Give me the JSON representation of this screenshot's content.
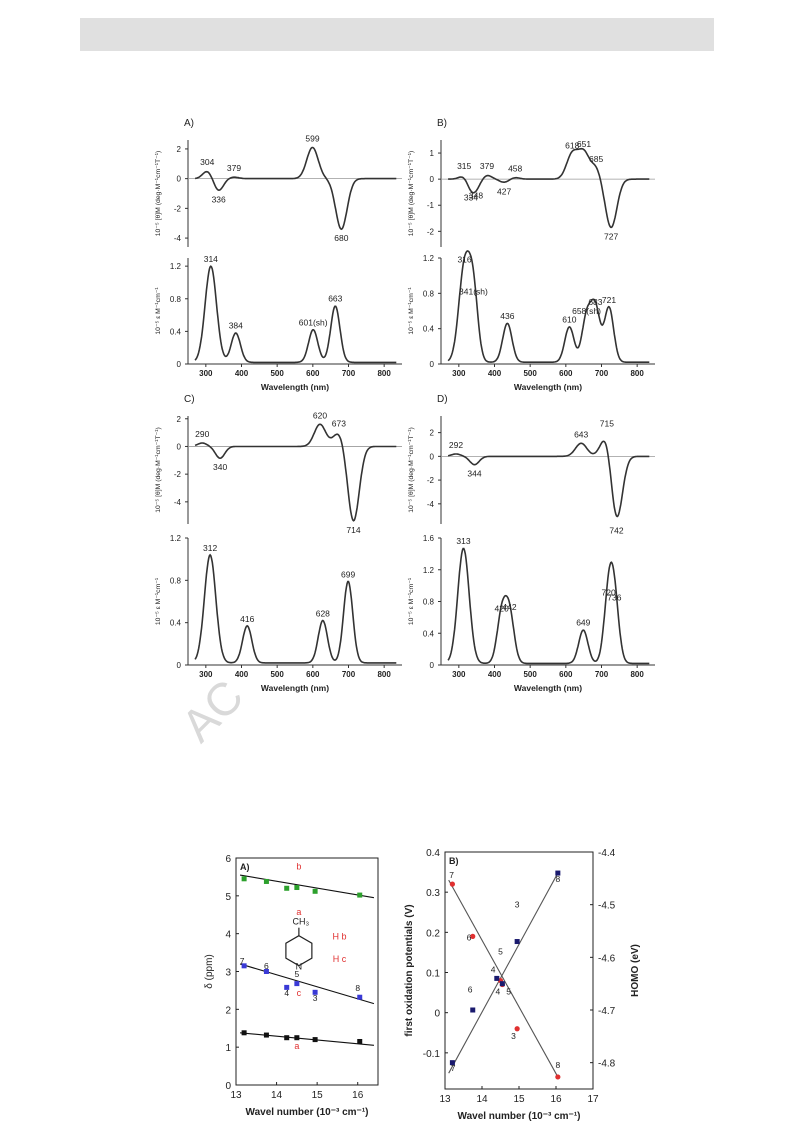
{
  "page": {
    "watermark": "AC"
  },
  "chart_data": [
    {
      "type": "line",
      "panel_label": "A)",
      "ylabel": "10⁻⁵ [θ]M (deg·M⁻¹cm⁻¹T⁻¹)",
      "xlim": [
        250,
        850
      ],
      "ylim": [
        -4.6,
        2.6
      ],
      "yticks": [
        2,
        0,
        -2,
        -4
      ],
      "peaks": [
        [
          304,
          0.5
        ],
        [
          336,
          -0.8
        ],
        [
          379,
          0.1
        ],
        [
          599,
          2.1
        ],
        [
          680,
          -3.4
        ]
      ],
      "annotations": [
        {
          "x": 304,
          "y": 0.5,
          "text": "304"
        },
        {
          "x": 336,
          "y": -0.8,
          "text": "336"
        },
        {
          "x": 379,
          "y": 0.1,
          "text": "379"
        },
        {
          "x": 599,
          "y": 2.1,
          "text": "599"
        },
        {
          "x": 680,
          "y": -3.4,
          "text": "680"
        }
      ]
    },
    {
      "type": "line",
      "ylabel": "10⁻⁵ ε M⁻¹cm⁻¹",
      "xlabel": "Wavelength (nm)",
      "xlim": [
        250,
        850
      ],
      "ylim": [
        0,
        1.3
      ],
      "yticks": [
        0,
        0.4,
        0.8,
        1.2
      ],
      "xticks": [
        300,
        400,
        500,
        600,
        700,
        800
      ],
      "baseline": 0.02,
      "peaks": [
        [
          314,
          1.18
        ],
        [
          384,
          0.36
        ],
        [
          601,
          0.4
        ],
        [
          663,
          0.69
        ]
      ],
      "annotations": [
        {
          "x": 314,
          "y": 1.18,
          "text": "314"
        },
        {
          "x": 384,
          "y": 0.36,
          "text": "384"
        },
        {
          "x": 601,
          "y": 0.4,
          "text": "601(sh)"
        },
        {
          "x": 663,
          "y": 0.69,
          "text": "663"
        }
      ]
    },
    {
      "type": "line",
      "panel_label": "B)",
      "ylabel": "10⁻⁵ [θ]M (deg·M⁻¹cm⁻¹T⁻¹)",
      "xlim": [
        250,
        850
      ],
      "ylim": [
        -2.6,
        1.5
      ],
      "yticks": [
        1,
        0,
        -1,
        -2
      ],
      "peaks": [
        [
          315,
          0.15
        ],
        [
          334,
          -0.35
        ],
        [
          348,
          -0.28
        ],
        [
          379,
          0.15
        ],
        [
          427,
          -0.12
        ],
        [
          458,
          0.06
        ],
        [
          618,
          0.95
        ],
        [
          651,
          1.0
        ],
        [
          685,
          0.42
        ],
        [
          727,
          -1.85
        ]
      ],
      "annotations": [
        {
          "x": 315,
          "y": 0.15,
          "text": "315"
        },
        {
          "x": 334,
          "y": -0.35,
          "text": "334"
        },
        {
          "x": 348,
          "y": -0.28,
          "text": "348"
        },
        {
          "x": 379,
          "y": 0.15,
          "text": "379"
        },
        {
          "x": 427,
          "y": -0.12,
          "text": "427"
        },
        {
          "x": 458,
          "y": 0.06,
          "text": "458"
        },
        {
          "x": 618,
          "y": 0.95,
          "text": "618"
        },
        {
          "x": 651,
          "y": 1.0,
          "text": "651"
        },
        {
          "x": 685,
          "y": 0.42,
          "text": "685"
        },
        {
          "x": 727,
          "y": -1.85,
          "text": "727"
        }
      ]
    },
    {
      "type": "line",
      "ylabel": "10⁻⁵ ε M⁻¹cm⁻¹",
      "xlabel": "Wavelength (nm)",
      "xlim": [
        250,
        850
      ],
      "ylim": [
        0,
        1.2
      ],
      "yticks": [
        0,
        0.4,
        0.8,
        1.2
      ],
      "xticks": [
        300,
        400,
        500,
        600,
        700,
        800
      ],
      "baseline": 0.02,
      "peaks": [
        [
          316,
          1.08
        ],
        [
          341,
          0.72
        ],
        [
          436,
          0.44
        ],
        [
          610,
          0.4
        ],
        [
          658,
          0.5
        ],
        [
          683,
          0.6
        ],
        [
          721,
          0.62
        ]
      ],
      "annotations": [
        {
          "x": 316,
          "y": 1.08,
          "text": "316"
        },
        {
          "x": 341,
          "y": 0.72,
          "text": "341(sh)"
        },
        {
          "x": 436,
          "y": 0.44,
          "text": "436"
        },
        {
          "x": 610,
          "y": 0.4,
          "text": "610"
        },
        {
          "x": 658,
          "y": 0.5,
          "text": "658(sh)"
        },
        {
          "x": 683,
          "y": 0.6,
          "text": "683"
        },
        {
          "x": 721,
          "y": 0.62,
          "text": "721"
        }
      ]
    },
    {
      "type": "line",
      "panel_label": "C)",
      "ylabel": "10⁻⁵ [θ]M (deg·M⁻¹cm⁻¹T⁻¹)",
      "xlim": [
        250,
        850
      ],
      "ylim": [
        -5.6,
        2.2
      ],
      "yticks": [
        2,
        0,
        -2,
        -4
      ],
      "peaks": [
        [
          290,
          0.25
        ],
        [
          340,
          -0.85
        ],
        [
          620,
          1.6
        ],
        [
          673,
          1.0
        ],
        [
          714,
          -5.4
        ]
      ],
      "annotations": [
        {
          "x": 290,
          "y": 0.25,
          "text": "290"
        },
        {
          "x": 340,
          "y": -0.85,
          "text": "340"
        },
        {
          "x": 620,
          "y": 1.6,
          "text": "620"
        },
        {
          "x": 673,
          "y": 1.0,
          "text": "673"
        },
        {
          "x": 714,
          "y": -5.4,
          "text": "714"
        }
      ]
    },
    {
      "type": "line",
      "ylabel": "10⁻⁵ ε M⁻¹cm⁻¹",
      "xlabel": "Wavelength (nm)",
      "xlim": [
        250,
        850
      ],
      "ylim": [
        0,
        1.2
      ],
      "yticks": [
        0,
        0.4,
        0.8,
        1.2
      ],
      "xticks": [
        300,
        400,
        500,
        600,
        700,
        800
      ],
      "baseline": 0.02,
      "peaks": [
        [
          312,
          1.02
        ],
        [
          416,
          0.35
        ],
        [
          628,
          0.4
        ],
        [
          699,
          0.77
        ]
      ],
      "annotations": [
        {
          "x": 312,
          "y": 1.02,
          "text": "312"
        },
        {
          "x": 416,
          "y": 0.35,
          "text": "416"
        },
        {
          "x": 628,
          "y": 0.4,
          "text": "628"
        },
        {
          "x": 699,
          "y": 0.77,
          "text": "699"
        }
      ]
    },
    {
      "type": "line",
      "panel_label": "D)",
      "ylabel": "10⁻⁵ [θ]M (deg·M⁻¹cm⁻¹T⁻¹)",
      "xlim": [
        250,
        850
      ],
      "ylim": [
        -5.7,
        3.4
      ],
      "yticks": [
        2,
        0,
        -2,
        -4
      ],
      "peaks": [
        [
          292,
          0.2
        ],
        [
          344,
          -0.7
        ],
        [
          643,
          1.1
        ],
        [
          715,
          2.0
        ],
        [
          742,
          -5.5
        ]
      ],
      "annotations": [
        {
          "x": 292,
          "y": 0.2,
          "text": "292"
        },
        {
          "x": 344,
          "y": -0.7,
          "text": "344"
        },
        {
          "x": 643,
          "y": 1.1,
          "text": "643"
        },
        {
          "x": 715,
          "y": 2.0,
          "text": "715"
        },
        {
          "x": 742,
          "y": -5.5,
          "text": "742"
        }
      ]
    },
    {
      "type": "line",
      "ylabel": "10⁻⁵ ε M⁻¹cm⁻¹",
      "xlabel": "Wavelength (nm)",
      "xlim": [
        250,
        850
      ],
      "ylim": [
        0,
        1.6
      ],
      "yticks": [
        0,
        0.4,
        0.8,
        1.2,
        1.6
      ],
      "xticks": [
        300,
        400,
        500,
        600,
        700,
        800
      ],
      "baseline": 0.02,
      "peaks": [
        [
          313,
          1.45
        ],
        [
          420,
          0.6
        ],
        [
          442,
          0.62
        ],
        [
          649,
          0.42
        ],
        [
          720,
          0.8
        ],
        [
          736,
          0.74
        ]
      ],
      "annotations": [
        {
          "x": 313,
          "y": 1.45,
          "text": "313"
        },
        {
          "x": 420,
          "y": 0.6,
          "text": "420"
        },
        {
          "x": 442,
          "y": 0.62,
          "text": "442"
        },
        {
          "x": 649,
          "y": 0.42,
          "text": "649"
        },
        {
          "x": 720,
          "y": 0.8,
          "text": "720"
        },
        {
          "x": 736,
          "y": 0.74,
          "text": "736"
        }
      ]
    },
    {
      "type": "scatter",
      "panel_label": "A)",
      "xlabel": "Wavel number (10⁻³ cm⁻¹)",
      "ylabel": "δ (ppm)",
      "xlim": [
        13,
        16.5
      ],
      "ylim": [
        0,
        6
      ],
      "xticks": [
        13,
        14,
        15,
        16
      ],
      "yticks": [
        0,
        1,
        2,
        3,
        4,
        5,
        6
      ],
      "series": [
        {
          "name": "b",
          "color": "#2ca02c",
          "x": [
            13.2,
            13.75,
            14.25,
            14.5,
            14.95,
            16.05
          ],
          "y": [
            5.45,
            5.38,
            5.2,
            5.22,
            5.12,
            5.02
          ],
          "fit": [
            [
              13.1,
              5.55
            ],
            [
              16.4,
              4.95
            ]
          ]
        },
        {
          "name": "c",
          "color": "#3a3ad6",
          "x": [
            13.2,
            13.75,
            14.25,
            14.5,
            14.95,
            16.05
          ],
          "y": [
            3.15,
            3.0,
            2.58,
            2.68,
            2.45,
            2.32
          ],
          "fit": [
            [
              13.1,
              3.2
            ],
            [
              16.4,
              2.15
            ]
          ]
        },
        {
          "name": "a",
          "color": "#111111",
          "x": [
            13.2,
            13.75,
            14.25,
            14.5,
            14.95,
            16.05
          ],
          "y": [
            1.38,
            1.32,
            1.25,
            1.25,
            1.2,
            1.15
          ],
          "fit": [
            [
              13.1,
              1.38
            ],
            [
              16.4,
              1.05
            ]
          ]
        }
      ],
      "point_labels": [
        {
          "x": 13.15,
          "y": 3.2,
          "text": "7"
        },
        {
          "x": 13.75,
          "y": 3.06,
          "text": "6"
        },
        {
          "x": 14.25,
          "y": 2.35,
          "text": "4"
        },
        {
          "x": 14.5,
          "y": 2.85,
          "text": "5"
        },
        {
          "x": 14.95,
          "y": 2.22,
          "text": "3"
        },
        {
          "x": 16.0,
          "y": 2.48,
          "text": "8"
        }
      ],
      "red_labels": [
        {
          "x": 14.55,
          "y": 5.7,
          "text": "b"
        },
        {
          "x": 14.55,
          "y": 4.5,
          "text": "a"
        },
        {
          "x": 14.55,
          "y": 2.35,
          "text": "c"
        },
        {
          "x": 14.5,
          "y": 0.95,
          "text": "a"
        },
        {
          "x": 15.55,
          "y": 3.25,
          "text": "H c"
        },
        {
          "x": 15.55,
          "y": 3.85,
          "text": "H b"
        }
      ],
      "molecule": {
        "substituent": "CH₃",
        "n_label": "N",
        "hb": "H",
        "hc": "H",
        "b": "b",
        "c": "c"
      }
    },
    {
      "type": "scatter",
      "panel_label": "B)",
      "xlabel": "Wavel number (10⁻³ cm⁻¹)",
      "ylabel": "first oxidation potentials (V)",
      "y2label": "HOMO (eV)",
      "xlim": [
        13,
        17
      ],
      "ylim": [
        -0.19,
        0.4
      ],
      "y2lim": [
        -4.85,
        -4.4
      ],
      "xticks": [
        13,
        14,
        15,
        16,
        17
      ],
      "yticks": [
        -0.1,
        0,
        0.1,
        0.2,
        0.3,
        0.4
      ],
      "y2ticks": [
        -4.8,
        -4.7,
        -4.6,
        -4.5,
        -4.4
      ],
      "series": [
        {
          "name": "oxidation",
          "color": "#e03030",
          "x": [
            13.2,
            13.75,
            14.5,
            14.55,
            14.95,
            16.05
          ],
          "y": [
            0.32,
            0.19,
            0.08,
            0.07,
            -0.04,
            -0.16
          ],
          "fit": [
            [
              13.1,
              0.33
            ],
            [
              16.05,
              -0.16
            ]
          ]
        },
        {
          "name": "HOMO",
          "color": "#1a1a6e",
          "x": [
            13.2,
            13.75,
            14.4,
            14.55,
            14.95,
            16.05
          ],
          "y2": [
            -4.8,
            -4.7,
            -4.64,
            -4.65,
            -4.57,
            -4.44
          ],
          "fit": [
            [
              13.1,
              -4.82
            ],
            [
              16.05,
              -4.44
            ]
          ]
        }
      ],
      "point_labels": [
        {
          "x": 13.18,
          "y": 0.335,
          "text": "7"
        },
        {
          "x": 13.65,
          "y": 0.18,
          "text": "6"
        },
        {
          "x": 14.3,
          "y": 0.1,
          "text": "4"
        },
        {
          "x": 14.5,
          "y": 0.145,
          "text": "5"
        },
        {
          "x": 14.95,
          "y": 0.262,
          "text": "3"
        },
        {
          "x": 16.05,
          "y": 0.325,
          "text": "8"
        },
        {
          "x": 13.68,
          "y": 0.05,
          "text": "6"
        },
        {
          "x": 14.43,
          "y": 0.045,
          "text": "4"
        },
        {
          "x": 14.72,
          "y": 0.045,
          "text": "5"
        },
        {
          "x": 14.85,
          "y": -0.065,
          "text": "3"
        },
        {
          "x": 13.22,
          "y": -0.145,
          "text": "7"
        },
        {
          "x": 16.05,
          "y": -0.138,
          "text": "8"
        }
      ]
    }
  ]
}
